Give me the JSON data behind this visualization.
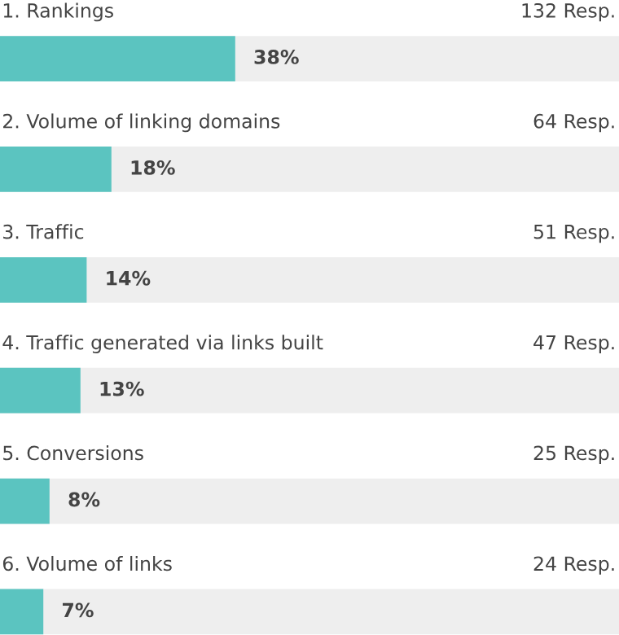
{
  "chart_data": {
    "type": "bar",
    "orientation": "horizontal",
    "categories": [
      "1. Rankings",
      "2. Volume of linking domains",
      "3. Traffic",
      "4. Traffic generated via links built",
      "5. Conversions",
      "6. Volume of links"
    ],
    "values": [
      38,
      18,
      14,
      13,
      8,
      7
    ],
    "value_labels": [
      "38%",
      "18%",
      "14%",
      "13%",
      "8%",
      "7%"
    ],
    "color": "#5bc4c0",
    "xlim": [
      0,
      100
    ],
    "annotations": [
      "132 Resp.",
      "64 Resp.",
      "51 Resp.",
      "47 Resp.",
      "25 Resp.",
      "24 Resp."
    ]
  }
}
